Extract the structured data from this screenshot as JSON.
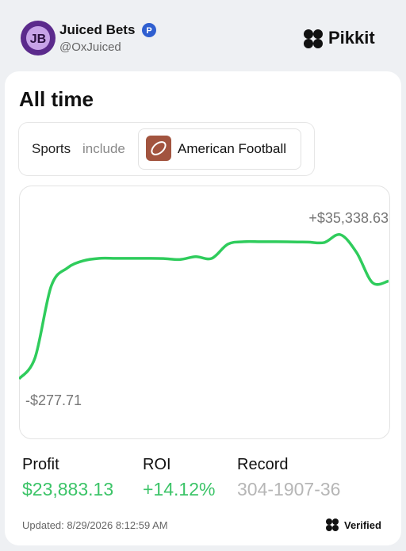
{
  "header": {
    "name": "Juiced Bets",
    "handle": "@OxJuiced",
    "brand": "Pikkit"
  },
  "card": {
    "title": "All time",
    "filter": {
      "label": "Sports",
      "operator": "include",
      "value": "American Football"
    },
    "chart_data": {
      "type": "line",
      "color": "#2fcc5c",
      "values": [
        -277.71,
        5000,
        22600,
        27100,
        28900,
        29500,
        29500,
        29500,
        29500,
        29450,
        29200,
        29900,
        29500,
        33000,
        33600,
        33600,
        33600,
        33550,
        33500,
        33400,
        35338.63,
        31000,
        23500,
        23883.13
      ],
      "value_labels": [
        "-$277.71",
        null,
        null,
        null,
        null,
        null,
        null,
        null,
        null,
        null,
        null,
        null,
        null,
        null,
        null,
        null,
        null,
        null,
        null,
        null,
        "+$35,338.63",
        null,
        null,
        null
      ]
    },
    "stats": [
      {
        "label": "Profit",
        "value": "$23,883.13"
      },
      {
        "label": "ROI",
        "value": "+14.12%"
      },
      {
        "label": "Record",
        "value": "304-1907-36"
      }
    ],
    "updated": "Updated: 8/29/2026 8:12:59 AM",
    "verified": "Verified"
  }
}
